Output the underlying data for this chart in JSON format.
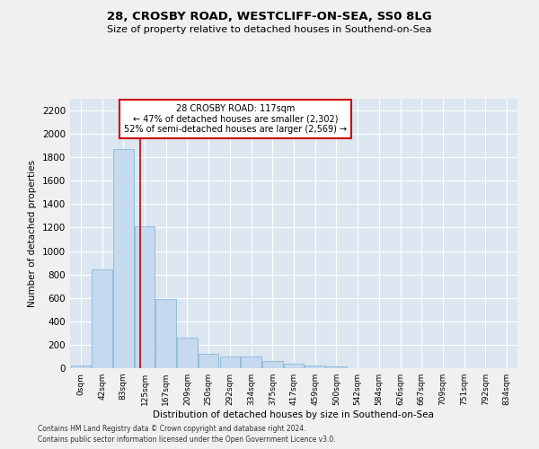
{
  "title1": "28, CROSBY ROAD, WESTCLIFF-ON-SEA, SS0 8LG",
  "title2": "Size of property relative to detached houses in Southend-on-Sea",
  "xlabel": "Distribution of detached houses by size in Southend-on-Sea",
  "ylabel": "Number of detached properties",
  "annotation_line1": "28 CROSBY ROAD: 117sqm",
  "annotation_line2": "← 47% of detached houses are smaller (2,302)",
  "annotation_line3": "52% of semi-detached houses are larger (2,569) →",
  "bar_categories": [
    "0sqm",
    "42sqm",
    "83sqm",
    "125sqm",
    "167sqm",
    "209sqm",
    "250sqm",
    "292sqm",
    "334sqm",
    "375sqm",
    "417sqm",
    "459sqm",
    "500sqm",
    "542sqm",
    "584sqm",
    "626sqm",
    "667sqm",
    "709sqm",
    "751sqm",
    "792sqm",
    "834sqm"
  ],
  "bar_values": [
    20,
    840,
    1870,
    1210,
    590,
    260,
    120,
    100,
    100,
    65,
    40,
    20,
    15,
    0,
    0,
    0,
    0,
    0,
    0,
    0,
    0
  ],
  "bar_color": "#c5d9ef",
  "bar_edge_color": "#7bafd4",
  "vertical_line_x": 2.78,
  "ylim": [
    0,
    2300
  ],
  "yticks": [
    0,
    200,
    400,
    600,
    800,
    1000,
    1200,
    1400,
    1600,
    1800,
    2000,
    2200
  ],
  "background_color": "#dce6f0",
  "grid_color": "#ffffff",
  "annotation_box_color": "#ffffff",
  "annotation_box_edge": "#cc0000",
  "vline_color": "#cc0000",
  "fig_bg": "#f0f0f0",
  "footer1": "Contains HM Land Registry data © Crown copyright and database right 2024.",
  "footer2": "Contains public sector information licensed under the Open Government Licence v3.0."
}
